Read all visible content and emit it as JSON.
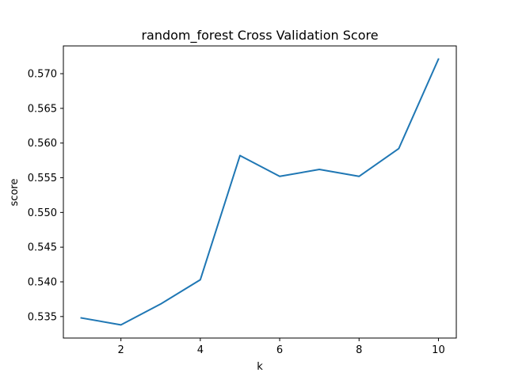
{
  "chart_data": {
    "type": "line",
    "title": "random_forest Cross Validation Score",
    "xlabel": "k",
    "ylabel": "score",
    "x": [
      1,
      2,
      3,
      4,
      5,
      6,
      7,
      8,
      9,
      10
    ],
    "series": [
      {
        "values": [
          0.5348,
          0.5338,
          0.5368,
          0.5403,
          0.5582,
          0.5552,
          0.5562,
          0.5552,
          0.5592,
          0.5721
        ],
        "color": "#1f77b4"
      }
    ],
    "xlim": [
      0.55,
      10.45
    ],
    "ylim": [
      0.5319,
      0.574
    ],
    "xticks": [
      2,
      4,
      6,
      8,
      10
    ],
    "xtick_labels": [
      "2",
      "4",
      "6",
      "8",
      "10"
    ],
    "yticks": [
      0.535,
      0.54,
      0.545,
      0.55,
      0.555,
      0.56,
      0.565,
      0.57
    ],
    "ytick_labels": [
      "0.535",
      "0.540",
      "0.545",
      "0.550",
      "0.555",
      "0.560",
      "0.565",
      "0.570"
    ],
    "grid": false,
    "legend": "none"
  }
}
